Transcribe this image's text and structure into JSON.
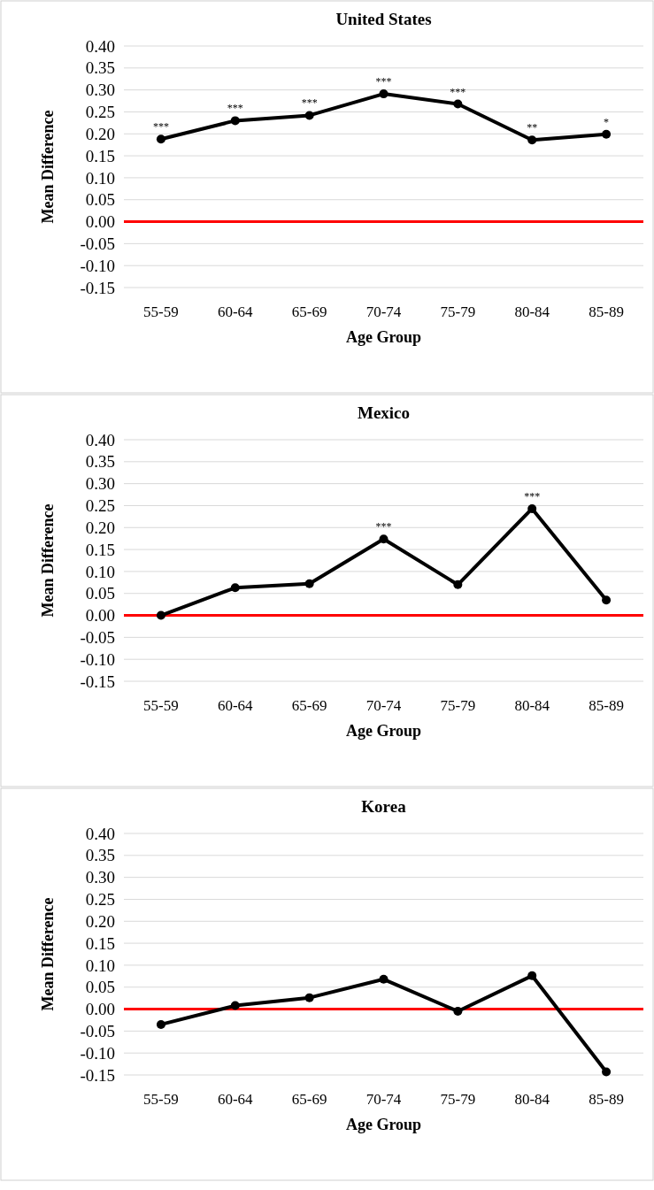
{
  "chart_data": [
    {
      "type": "line",
      "title": "United States",
      "xlabel": "Age Group",
      "ylabel": "Mean Difference",
      "categories": [
        "55-59",
        "60-64",
        "65-69",
        "70-74",
        "75-79",
        "80-84",
        "85-89"
      ],
      "series": [
        {
          "color": "#000000",
          "values": [
            0.188,
            0.23,
            0.242,
            0.291,
            0.268,
            0.186,
            0.199
          ]
        }
      ],
      "ylim": [
        -0.15,
        0.4
      ],
      "yticks": [
        {
          "value": -0.15,
          "label": "-0.15"
        },
        {
          "value": -0.1,
          "label": "-0.10"
        },
        {
          "value": -0.05,
          "label": "-0.05"
        },
        {
          "value": 0,
          "label": "0.00"
        },
        {
          "value": 0.05,
          "label": "0.05"
        },
        {
          "value": 0.1,
          "label": "0.10"
        },
        {
          "value": 0.15,
          "label": "0.15"
        },
        {
          "value": 0.2,
          "label": "0.20"
        },
        {
          "value": 0.25,
          "label": "0.25"
        },
        {
          "value": 0.3,
          "label": "0.30"
        },
        {
          "value": 0.35,
          "label": "0.35"
        },
        {
          "value": 0.4,
          "label": "0.40"
        }
      ],
      "grid": "y",
      "marker": "circle",
      "line_style": "solid",
      "ref_lines": [
        {
          "axis": "y",
          "value": 0,
          "color": "#ff0000"
        }
      ],
      "annotations": [
        {
          "text": "***",
          "x": "55-59",
          "y": 0.188
        },
        {
          "text": "***",
          "x": "60-64",
          "y": 0.23
        },
        {
          "text": "***",
          "x": "65-69",
          "y": 0.242
        },
        {
          "text": "***",
          "x": "70-74",
          "y": 0.291
        },
        {
          "text": "***",
          "x": "75-79",
          "y": 0.268
        },
        {
          "text": "**",
          "x": "80-84",
          "y": 0.186
        },
        {
          "text": "*",
          "x": "85-89",
          "y": 0.199
        }
      ]
    },
    {
      "type": "line",
      "title": "Mexico",
      "xlabel": "Age Group",
      "ylabel": "Mean Difference",
      "categories": [
        "55-59",
        "60-64",
        "65-69",
        "70-74",
        "75-79",
        "80-84",
        "85-89"
      ],
      "series": [
        {
          "color": "#000000",
          "values": [
            0.0,
            0.063,
            0.072,
            0.174,
            0.07,
            0.243,
            0.035
          ]
        }
      ],
      "ylim": [
        -0.15,
        0.4
      ],
      "yticks": [
        {
          "value": -0.15,
          "label": "-0.15"
        },
        {
          "value": -0.1,
          "label": "-0.10"
        },
        {
          "value": -0.05,
          "label": "-0.05"
        },
        {
          "value": 0,
          "label": "0.00"
        },
        {
          "value": 0.05,
          "label": "0.05"
        },
        {
          "value": 0.1,
          "label": "0.10"
        },
        {
          "value": 0.15,
          "label": "0.15"
        },
        {
          "value": 0.2,
          "label": "0.20"
        },
        {
          "value": 0.25,
          "label": "0.25"
        },
        {
          "value": 0.3,
          "label": "0.30"
        },
        {
          "value": 0.35,
          "label": "0.35"
        },
        {
          "value": 0.4,
          "label": "0.40"
        }
      ],
      "grid": "y",
      "marker": "circle",
      "line_style": "solid",
      "ref_lines": [
        {
          "axis": "y",
          "value": 0,
          "color": "#ff0000"
        }
      ],
      "annotations": [
        {
          "text": "***",
          "x": "70-74",
          "y": 0.174
        },
        {
          "text": "***",
          "x": "80-84",
          "y": 0.243
        }
      ]
    },
    {
      "type": "line",
      "title": "Korea",
      "xlabel": "Age Group",
      "ylabel": "Mean Difference",
      "categories": [
        "55-59",
        "60-64",
        "65-69",
        "70-74",
        "75-79",
        "80-84",
        "85-89"
      ],
      "series": [
        {
          "color": "#000000",
          "values": [
            -0.035,
            0.008,
            0.026,
            0.068,
            -0.005,
            0.076,
            -0.143
          ]
        }
      ],
      "ylim": [
        -0.15,
        0.4
      ],
      "yticks": [
        {
          "value": -0.15,
          "label": "-0.15"
        },
        {
          "value": -0.1,
          "label": "-0.10"
        },
        {
          "value": -0.05,
          "label": "-0.05"
        },
        {
          "value": 0,
          "label": "0.00"
        },
        {
          "value": 0.05,
          "label": "0.05"
        },
        {
          "value": 0.1,
          "label": "0.10"
        },
        {
          "value": 0.15,
          "label": "0.15"
        },
        {
          "value": 0.2,
          "label": "0.20"
        },
        {
          "value": 0.25,
          "label": "0.25"
        },
        {
          "value": 0.3,
          "label": "0.30"
        },
        {
          "value": 0.35,
          "label": "0.35"
        },
        {
          "value": 0.4,
          "label": "0.40"
        }
      ],
      "grid": "y",
      "marker": "circle",
      "line_style": "solid",
      "ref_lines": [
        {
          "axis": "y",
          "value": 0,
          "color": "#ff0000"
        }
      ]
    }
  ]
}
